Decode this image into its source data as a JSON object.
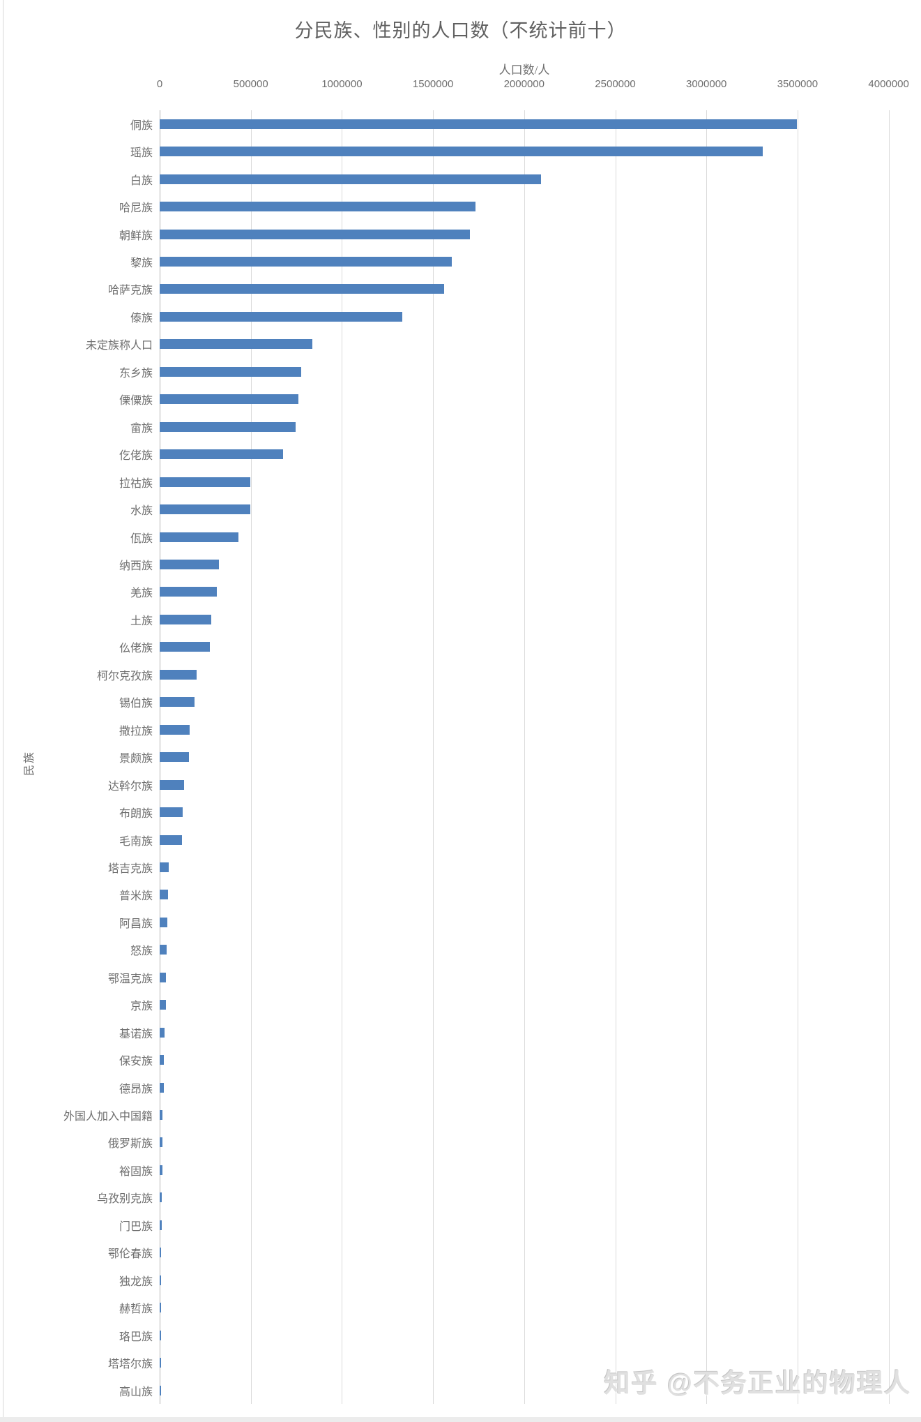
{
  "watermark": "知乎 @不务正业的物理人",
  "colors": {
    "bar": "#4f81bd",
    "gridline": "#dadada",
    "axis_line": "#b3b3b3",
    "text": "#6e6e6e",
    "watermark": "#e0e0e0",
    "background": "#ffffff"
  },
  "chart_data": {
    "type": "bar",
    "orientation": "horizontal",
    "title": "分民族、性别的人口数（不统计前十）",
    "xlabel": "人口数/人",
    "ylabel": "民族",
    "xlim": [
      0,
      4000000
    ],
    "x_tick_values": [
      0,
      500000,
      1000000,
      1500000,
      2000000,
      2500000,
      3000000,
      3500000,
      4000000
    ],
    "x_tick_labels": [
      "0",
      "500000",
      "1000000",
      "1500000",
      "2000000",
      "2500000",
      "3000000",
      "3500000",
      "4000000"
    ],
    "grid": "vertical-gridlines-on",
    "legend": "none",
    "bar_color": "#4f81bd",
    "categories": [
      "侗族",
      "瑶族",
      "白族",
      "哈尼族",
      "朝鲜族",
      "黎族",
      "哈萨克族",
      "傣族",
      "未定族称人口",
      "东乡族",
      "傈僳族",
      "畲族",
      "仡佬族",
      "拉祜族",
      "水族",
      "佤族",
      "纳西族",
      "羌族",
      "土族",
      "仫佬族",
      "柯尔克孜族",
      "锡伯族",
      "撒拉族",
      "景颇族",
      "达斡尔族",
      "布朗族",
      "毛南族",
      "塔吉克族",
      "普米族",
      "阿昌族",
      "怒族",
      "鄂温克族",
      "京族",
      "基诺族",
      "保安族",
      "德昂族",
      "外国人加入中国籍",
      "俄罗斯族",
      "裕固族",
      "乌孜别克族",
      "门巴族",
      "鄂伦春族",
      "独龙族",
      "赫哲族",
      "珞巴族",
      "塔塔尔族",
      "高山族"
    ],
    "values": [
      3495993,
      3309341,
      2091543,
      1733166,
      1702479,
      1602104,
      1562518,
      1329985,
      836488,
      774947,
      762996,
      746385,
      677521,
      499167,
      495928,
      430977,
      323767,
      312981,
      281928,
      277233,
      204402,
      191911,
      165159,
      160471,
      132299,
      127345,
      124092,
      50896,
      45078,
      43775,
      36575,
      34617,
      33112,
      26025,
      24434,
      22354,
      16595,
      16136,
      14706,
      12742,
      11143,
      9168,
      7310,
      5373,
      4237,
      3544,
      3479
    ]
  }
}
